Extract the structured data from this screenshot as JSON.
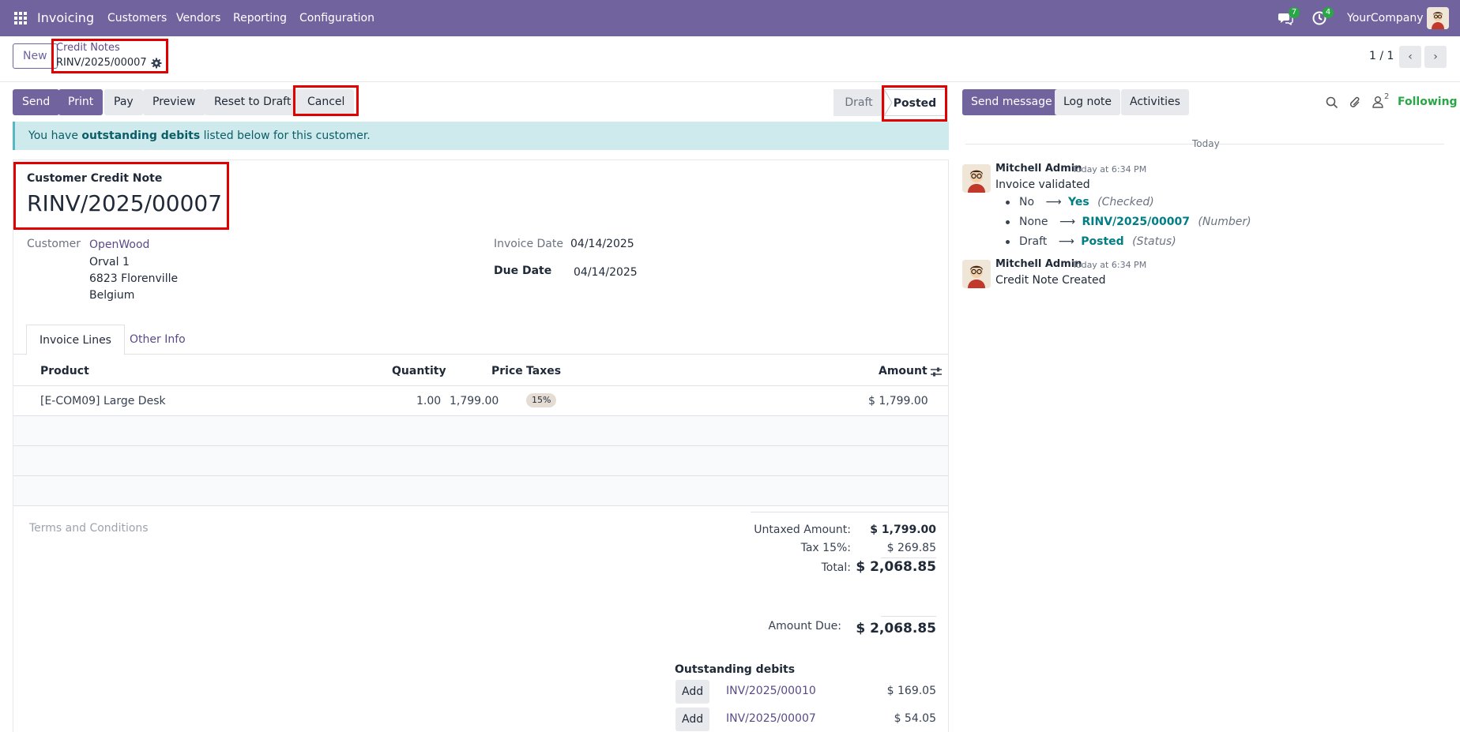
{
  "navbar": {
    "app_name": "Invoicing",
    "menu": [
      "Customers",
      "Vendors",
      "Reporting",
      "Configuration"
    ],
    "messages_count": "7",
    "activities_count": "4",
    "company": "YourCompany"
  },
  "control": {
    "new_label": "New",
    "breadcrumb": "Credit Notes",
    "record_name": "RINV/2025/00007",
    "pager": "1 / 1"
  },
  "actions": {
    "send": "Send",
    "print": "Print",
    "pay": "Pay",
    "preview": "Preview",
    "reset": "Reset to Draft",
    "cancel": "Cancel"
  },
  "status": {
    "draft": "Draft",
    "posted": "Posted"
  },
  "alert": {
    "prefix": "You have ",
    "bold": "outstanding debits",
    "suffix": " listed below for this customer."
  },
  "form": {
    "doc_type": "Customer Credit Note",
    "number": "RINV/2025/00007",
    "customer_label": "Customer",
    "customer_name": "OpenWood",
    "address": [
      "Orval 1",
      "6823 Florenville",
      "Belgium"
    ],
    "invoice_date_label": "Invoice Date",
    "invoice_date": "04/14/2025",
    "due_date_label": "Due Date",
    "due_date": "04/14/2025"
  },
  "tabs": [
    "Invoice Lines",
    "Other Info"
  ],
  "lines": {
    "headers": {
      "product": "Product",
      "quantity": "Quantity",
      "price": "Price",
      "taxes": "Taxes",
      "amount": "Amount"
    },
    "rows": [
      {
        "product": "[E-COM09] Large Desk",
        "quantity": "1.00",
        "price": "1,799.00",
        "tax": "15%",
        "amount": "$ 1,799.00"
      }
    ]
  },
  "terms_placeholder": "Terms and Conditions",
  "totals": {
    "untaxed_label": "Untaxed Amount:",
    "untaxed": "$ 1,799.00",
    "tax_label": "Tax 15%:",
    "tax": "$ 269.85",
    "total_label": "Total:",
    "total": "$ 2,068.85",
    "due_label": "Amount Due:",
    "due": "$ 2,068.85"
  },
  "outstanding": {
    "title": "Outstanding debits",
    "add_label": "Add",
    "items": [
      {
        "ref": "INV/2025/00010",
        "amount": "$ 169.05"
      },
      {
        "ref": "INV/2025/00007",
        "amount": "$ 54.05"
      }
    ]
  },
  "chatter": {
    "send_message": "Send message",
    "log_note": "Log note",
    "activities": "Activities",
    "followers_count": "2",
    "following": "Following",
    "date_separator": "Today",
    "messages": [
      {
        "author": "Mitchell Admin",
        "time": "Today at 6:34 PM",
        "body": "Invoice validated",
        "tracking": [
          {
            "old": "No",
            "new": "Yes",
            "field": "(Checked)"
          },
          {
            "old": "None",
            "new": "RINV/2025/00007",
            "field": "(Number)"
          },
          {
            "old": "Draft",
            "new": "Posted",
            "field": "(Status)"
          }
        ]
      },
      {
        "author": "Mitchell Admin",
        "time": "Today at 6:34 PM",
        "body": "Credit Note Created"
      }
    ]
  }
}
